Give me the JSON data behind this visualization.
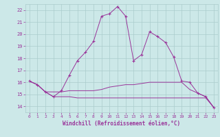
{
  "title": "",
  "xlabel": "Windchill (Refroidissement éolien,°C)",
  "bg_color": "#cce8e8",
  "grid_color": "#aacccc",
  "line_color": "#993399",
  "xlim": [
    -0.5,
    23.5
  ],
  "ylim": [
    13.5,
    22.5
  ],
  "yticks": [
    14,
    15,
    16,
    17,
    18,
    19,
    20,
    21,
    22
  ],
  "xticks": [
    0,
    1,
    2,
    3,
    4,
    5,
    6,
    7,
    8,
    9,
    10,
    11,
    12,
    13,
    14,
    15,
    16,
    17,
    18,
    19,
    20,
    21,
    22,
    23
  ],
  "line1_x": [
    0,
    1,
    2,
    3,
    4,
    5,
    6,
    7,
    8,
    9,
    10,
    11,
    12,
    13,
    14,
    15,
    16,
    17,
    18,
    19,
    20,
    21,
    22,
    23
  ],
  "line1_y": [
    16.1,
    15.8,
    15.2,
    14.8,
    15.3,
    16.6,
    17.8,
    18.5,
    19.4,
    21.5,
    21.7,
    22.3,
    21.5,
    17.8,
    18.3,
    20.2,
    19.8,
    19.3,
    18.1,
    16.1,
    16.0,
    15.1,
    14.8,
    13.9
  ],
  "line2_x": [
    0,
    1,
    2,
    3,
    4,
    5,
    6,
    7,
    8,
    9,
    10,
    11,
    12,
    13,
    14,
    15,
    16,
    17,
    18,
    19,
    20,
    21,
    22,
    23
  ],
  "line2_y": [
    16.1,
    15.8,
    15.2,
    15.2,
    15.2,
    15.3,
    15.3,
    15.3,
    15.3,
    15.4,
    15.6,
    15.7,
    15.8,
    15.8,
    15.9,
    16.0,
    16.0,
    16.0,
    16.0,
    16.0,
    15.4,
    15.1,
    14.8,
    13.9
  ],
  "line3_x": [
    0,
    1,
    2,
    3,
    4,
    5,
    6,
    7,
    8,
    9,
    10,
    11,
    12,
    13,
    14,
    15,
    16,
    17,
    18,
    19,
    20,
    21,
    22,
    23
  ],
  "line3_y": [
    16.1,
    15.8,
    15.2,
    14.8,
    14.8,
    14.8,
    14.7,
    14.7,
    14.7,
    14.7,
    14.7,
    14.7,
    14.7,
    14.7,
    14.7,
    14.7,
    14.7,
    14.7,
    14.7,
    14.7,
    14.7,
    14.7,
    14.7,
    13.9
  ]
}
